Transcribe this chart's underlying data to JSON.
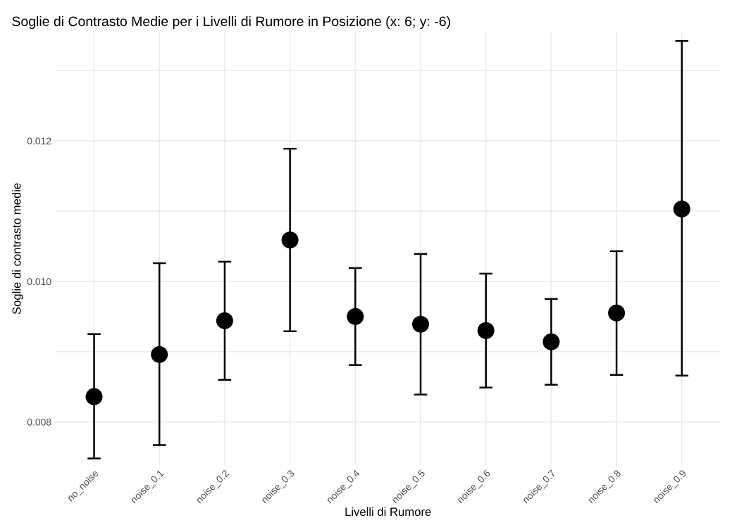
{
  "chart_data": {
    "type": "scatter",
    "title": "Soglie di Contrasto Medie per i Livelli di Rumore in Posizione (x: 6; y: -6)",
    "xlabel": "Livelli di Rumore",
    "ylabel": "Soglie di contrasto medie",
    "categories": [
      "no_noise",
      "noise_0.1",
      "noise_0.2",
      "noise_0.3",
      "noise_0.4",
      "noise_0.5",
      "noise_0.6",
      "noise_0.7",
      "noise_0.8",
      "noise_0.9"
    ],
    "values": [
      0.00836,
      0.00896,
      0.00944,
      0.01059,
      0.0095,
      0.00939,
      0.0093,
      0.00914,
      0.00955,
      0.01103
    ],
    "errors": [
      [
        0.00748,
        0.00925
      ],
      [
        0.00767,
        0.01026
      ],
      [
        0.0086,
        0.01028
      ],
      [
        0.00929,
        0.01189
      ],
      [
        0.00881,
        0.01019
      ],
      [
        0.00839,
        0.01039
      ],
      [
        0.00849,
        0.01011
      ],
      [
        0.00853,
        0.00975
      ],
      [
        0.00867,
        0.01043
      ],
      [
        0.00866,
        0.01342
      ]
    ],
    "color": "#000000",
    "marker": "circle",
    "grid": true,
    "ylim": [
      0.00738,
      0.01355
    ],
    "yticks": [
      {
        "value": 0.008,
        "label": "0.008"
      },
      {
        "value": 0.009,
        "label": null
      },
      {
        "value": 0.01,
        "label": "0.010"
      },
      {
        "value": 0.011,
        "label": null
      },
      {
        "value": 0.012,
        "label": "0.012"
      },
      {
        "value": 0.013,
        "label": null
      }
    ]
  }
}
